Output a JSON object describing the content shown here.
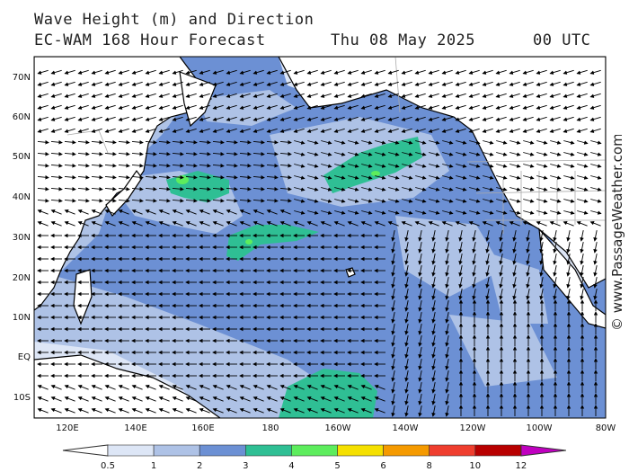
{
  "header": {
    "title_line1": "Wave Height (m) and Direction",
    "title_line2": "EC-WAM 168 Hour Forecast",
    "date": "Thu 08 May 2025",
    "time": "00 UTC"
  },
  "credit": "© www.PassageWeather.com",
  "axes": {
    "lat_labels": [
      "70N",
      "60N",
      "50N",
      "40N",
      "30N",
      "20N",
      "10N",
      "EQ",
      "10S"
    ],
    "lon_labels": [
      "120E",
      "140E",
      "160E",
      "180",
      "160W",
      "140W",
      "120W",
      "100W",
      "80W"
    ]
  },
  "legend": {
    "breaks": [
      "0.5",
      "1",
      "2",
      "3",
      "4",
      "5",
      "6",
      "8",
      "10",
      "12"
    ],
    "colors": [
      "#dde6f6",
      "#aec2e6",
      "#6c90d4",
      "#2fbf94",
      "#5ded5d",
      "#f5e000",
      "#f59a00",
      "#ef3e2e",
      "#b80000",
      "#c000c0"
    ]
  },
  "map_colors": {
    "ocean_base": "#6c90d4",
    "land": "#ffffff",
    "coast": "#000000",
    "border": "#aaaaaa",
    "arrow": "#000000"
  }
}
